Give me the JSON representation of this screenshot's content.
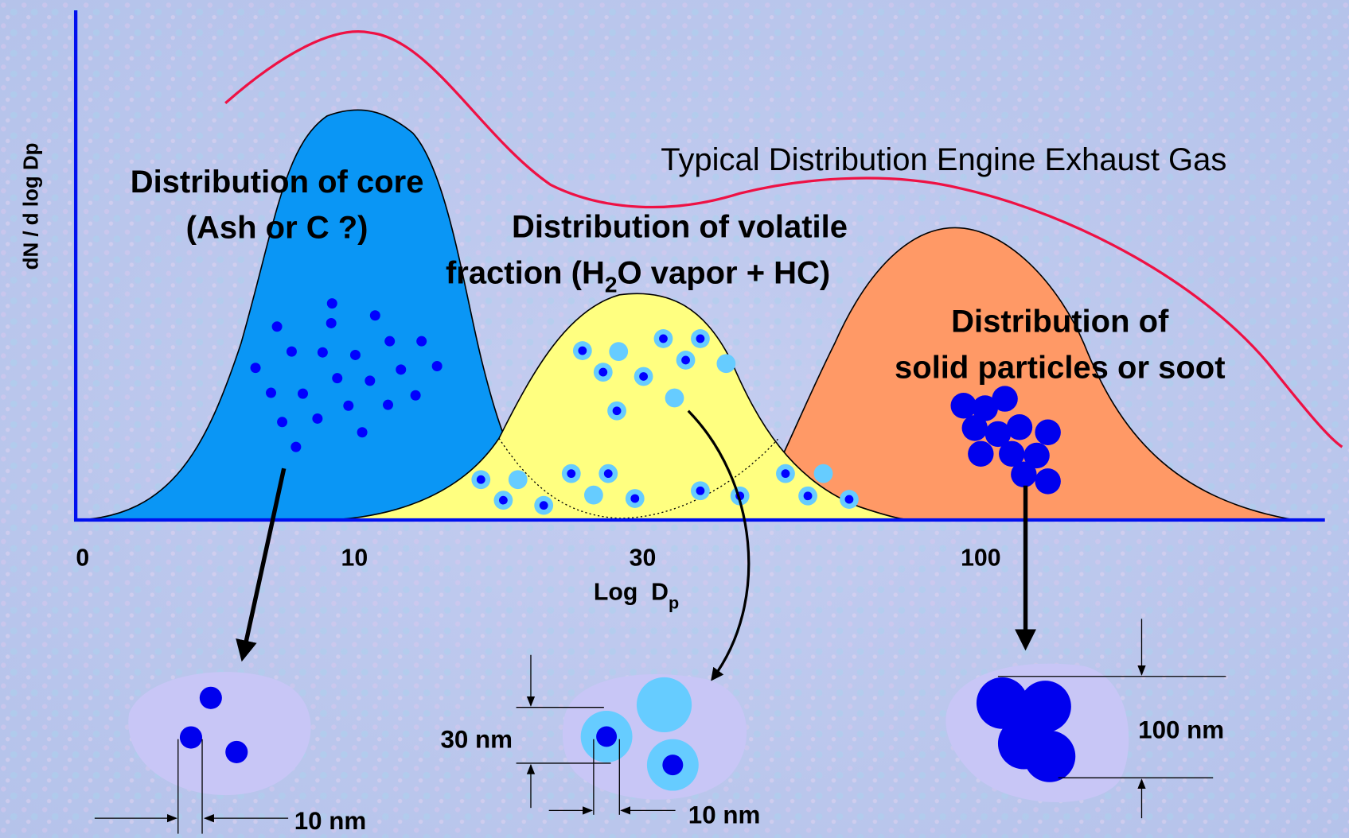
{
  "y_axis_label": "dN / d log Dp",
  "x_ticks": [
    "0",
    "10",
    "30",
    "100"
  ],
  "x_axis_label": {
    "main": "Log  D",
    "subscript": "p"
  },
  "curve_label": "Typical Distribution Engine Exhaust Gas",
  "core_label": [
    "Distribution of core",
    "(Ash or C ?)"
  ],
  "volatile_label": {
    "line1": "Distribution of volatile",
    "line2": [
      "fraction (H",
      "2",
      "O vapor + HC)"
    ]
  },
  "solid_label": [
    "Distribution of",
    "solid particles or soot"
  ],
  "dimensions": {
    "core": "10 nm",
    "volatile_outer": "30 nm",
    "volatile_inner": "10 nm",
    "solid": "100 nm"
  }
}
